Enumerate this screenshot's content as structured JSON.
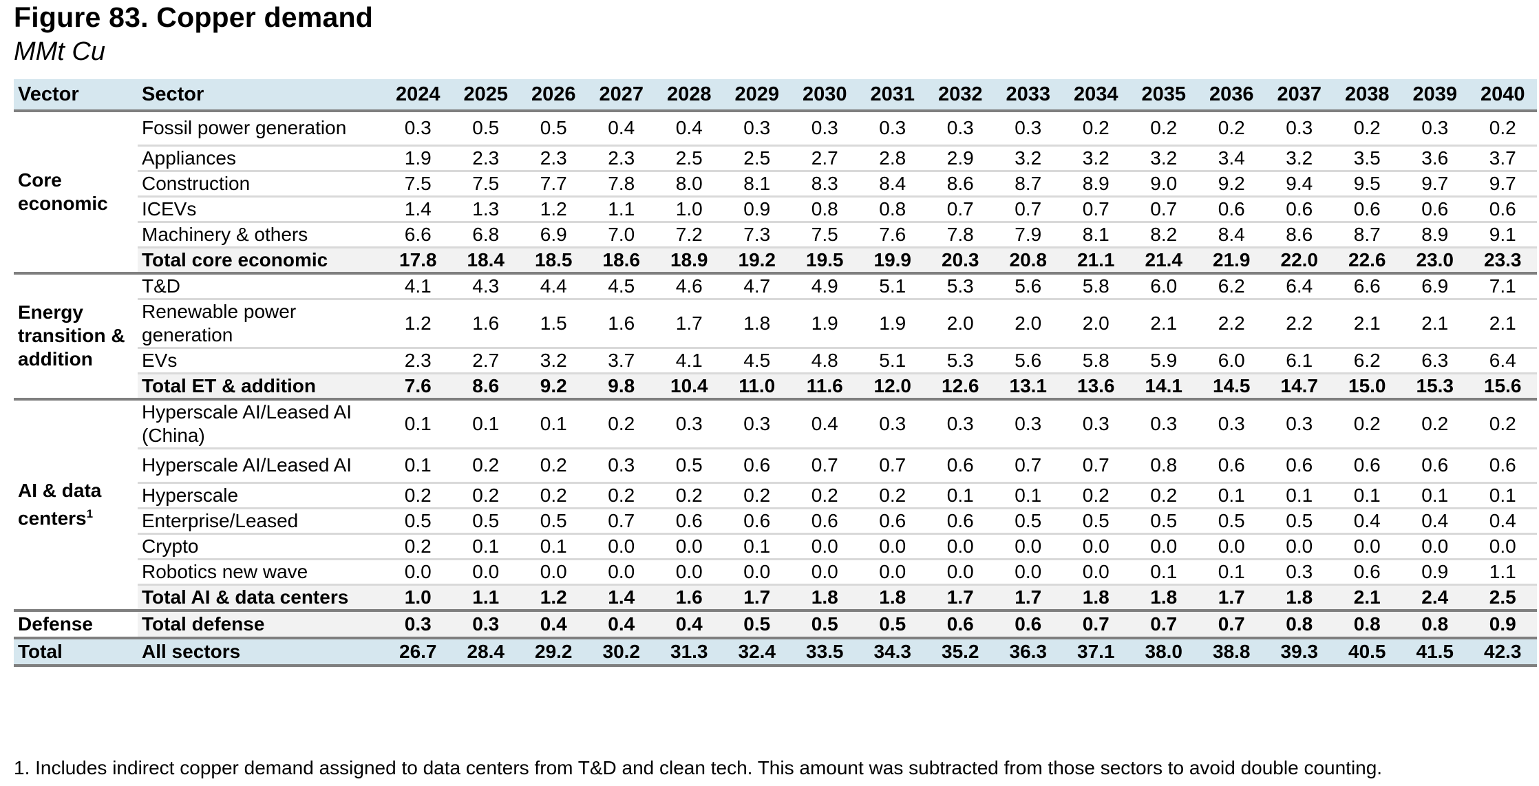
{
  "title": "Figure 83. Copper demand",
  "subtitle": "MMt Cu",
  "headers": {
    "vector": "Vector",
    "sector": "Sector",
    "years": [
      "2024",
      "2025",
      "2026",
      "2027",
      "2028",
      "2029",
      "2030",
      "2031",
      "2032",
      "2033",
      "2034",
      "2035",
      "2036",
      "2037",
      "2038",
      "2039",
      "2040"
    ]
  },
  "groups": [
    {
      "vector": "Core economic",
      "vector_sup": "",
      "rows": [
        {
          "sector": "Fossil power generation",
          "values": [
            "0.3",
            "0.5",
            "0.5",
            "0.4",
            "0.4",
            "0.3",
            "0.3",
            "0.3",
            "0.3",
            "0.3",
            "0.2",
            "0.2",
            "0.2",
            "0.3",
            "0.2",
            "0.3",
            "0.2"
          ]
        },
        {
          "sector": "Appliances",
          "values": [
            "1.9",
            "2.3",
            "2.3",
            "2.3",
            "2.5",
            "2.5",
            "2.7",
            "2.8",
            "2.9",
            "3.2",
            "3.2",
            "3.2",
            "3.4",
            "3.2",
            "3.5",
            "3.6",
            "3.7"
          ]
        },
        {
          "sector": "Construction",
          "values": [
            "7.5",
            "7.5",
            "7.7",
            "7.8",
            "8.0",
            "8.1",
            "8.3",
            "8.4",
            "8.6",
            "8.7",
            "8.9",
            "9.0",
            "9.2",
            "9.4",
            "9.5",
            "9.7",
            "9.7"
          ]
        },
        {
          "sector": "ICEVs",
          "values": [
            "1.4",
            "1.3",
            "1.2",
            "1.1",
            "1.0",
            "0.9",
            "0.8",
            "0.8",
            "0.7",
            "0.7",
            "0.7",
            "0.7",
            "0.6",
            "0.6",
            "0.6",
            "0.6",
            "0.6"
          ]
        },
        {
          "sector": "Machinery & others",
          "values": [
            "6.6",
            "6.8",
            "6.9",
            "7.0",
            "7.2",
            "7.3",
            "7.5",
            "7.6",
            "7.8",
            "7.9",
            "8.1",
            "8.2",
            "8.4",
            "8.6",
            "8.7",
            "8.9",
            "9.1"
          ]
        }
      ],
      "total": {
        "sector": "Total core economic",
        "values": [
          "17.8",
          "18.4",
          "18.5",
          "18.6",
          "18.9",
          "19.2",
          "19.5",
          "19.9",
          "20.3",
          "20.8",
          "21.1",
          "21.4",
          "21.9",
          "22.0",
          "22.6",
          "23.0",
          "23.3"
        ]
      }
    },
    {
      "vector": "Energy transition & addition",
      "vector_sup": "",
      "rows": [
        {
          "sector": "T&D",
          "values": [
            "4.1",
            "4.3",
            "4.4",
            "4.5",
            "4.6",
            "4.7",
            "4.9",
            "5.1",
            "5.3",
            "5.6",
            "5.8",
            "6.0",
            "6.2",
            "6.4",
            "6.6",
            "6.9",
            "7.1"
          ]
        },
        {
          "sector": "Renewable power generation",
          "values": [
            "1.2",
            "1.6",
            "1.5",
            "1.6",
            "1.7",
            "1.8",
            "1.9",
            "1.9",
            "2.0",
            "2.0",
            "2.0",
            "2.1",
            "2.2",
            "2.2",
            "2.1",
            "2.1",
            "2.1"
          ]
        },
        {
          "sector": "EVs",
          "values": [
            "2.3",
            "2.7",
            "3.2",
            "3.7",
            "4.1",
            "4.5",
            "4.8",
            "5.1",
            "5.3",
            "5.6",
            "5.8",
            "5.9",
            "6.0",
            "6.1",
            "6.2",
            "6.3",
            "6.4"
          ]
        }
      ],
      "total": {
        "sector": "Total ET & addition",
        "values": [
          "7.6",
          "8.6",
          "9.2",
          "9.8",
          "10.4",
          "11.0",
          "11.6",
          "12.0",
          "12.6",
          "13.1",
          "13.6",
          "14.1",
          "14.5",
          "14.7",
          "15.0",
          "15.3",
          "15.6"
        ]
      }
    },
    {
      "vector": "AI & data centers",
      "vector_sup": "1",
      "rows": [
        {
          "sector": "Hyperscale AI/Leased AI (China)",
          "values": [
            "0.1",
            "0.1",
            "0.1",
            "0.2",
            "0.3",
            "0.3",
            "0.4",
            "0.3",
            "0.3",
            "0.3",
            "0.3",
            "0.3",
            "0.3",
            "0.3",
            "0.2",
            "0.2",
            "0.2"
          ]
        },
        {
          "sector": "Hyperscale AI/Leased AI",
          "values": [
            "0.1",
            "0.2",
            "0.2",
            "0.3",
            "0.5",
            "0.6",
            "0.7",
            "0.7",
            "0.6",
            "0.7",
            "0.7",
            "0.8",
            "0.6",
            "0.6",
            "0.6",
            "0.6",
            "0.6"
          ]
        },
        {
          "sector": "Hyperscale",
          "values": [
            "0.2",
            "0.2",
            "0.2",
            "0.2",
            "0.2",
            "0.2",
            "0.2",
            "0.2",
            "0.1",
            "0.1",
            "0.2",
            "0.2",
            "0.1",
            "0.1",
            "0.1",
            "0.1",
            "0.1"
          ]
        },
        {
          "sector": "Enterprise/Leased",
          "values": [
            "0.5",
            "0.5",
            "0.5",
            "0.7",
            "0.6",
            "0.6",
            "0.6",
            "0.6",
            "0.6",
            "0.5",
            "0.5",
            "0.5",
            "0.5",
            "0.5",
            "0.4",
            "0.4",
            "0.4"
          ]
        },
        {
          "sector": "Crypto",
          "values": [
            "0.2",
            "0.1",
            "0.1",
            "0.0",
            "0.0",
            "0.1",
            "0.0",
            "0.0",
            "0.0",
            "0.0",
            "0.0",
            "0.0",
            "0.0",
            "0.0",
            "0.0",
            "0.0",
            "0.0"
          ]
        },
        {
          "sector": "Robotics new wave",
          "values": [
            "0.0",
            "0.0",
            "0.0",
            "0.0",
            "0.0",
            "0.0",
            "0.0",
            "0.0",
            "0.0",
            "0.0",
            "0.0",
            "0.1",
            "0.1",
            "0.3",
            "0.6",
            "0.9",
            "1.1"
          ]
        }
      ],
      "total": {
        "sector": "Total AI & data centers",
        "values": [
          "1.0",
          "1.1",
          "1.2",
          "1.4",
          "1.6",
          "1.7",
          "1.8",
          "1.8",
          "1.7",
          "1.7",
          "1.8",
          "1.8",
          "1.7",
          "1.8",
          "2.1",
          "2.4",
          "2.5"
        ]
      }
    }
  ],
  "defense": {
    "vector": "Defense",
    "sector": "Total defense",
    "values": [
      "0.3",
      "0.3",
      "0.4",
      "0.4",
      "0.4",
      "0.5",
      "0.5",
      "0.5",
      "0.6",
      "0.6",
      "0.7",
      "0.7",
      "0.7",
      "0.8",
      "0.8",
      "0.8",
      "0.9"
    ]
  },
  "grand_total": {
    "vector": "Total",
    "sector": "All sectors",
    "values": [
      "26.7",
      "28.4",
      "29.2",
      "30.2",
      "31.3",
      "32.4",
      "33.5",
      "34.3",
      "35.2",
      "36.3",
      "37.1",
      "38.0",
      "38.8",
      "39.3",
      "40.5",
      "41.5",
      "42.3"
    ]
  },
  "footnote": "1. Includes indirect copper demand assigned to data centers from T&D and clean tech. This amount was subtracted from those sectors to avoid double counting."
}
